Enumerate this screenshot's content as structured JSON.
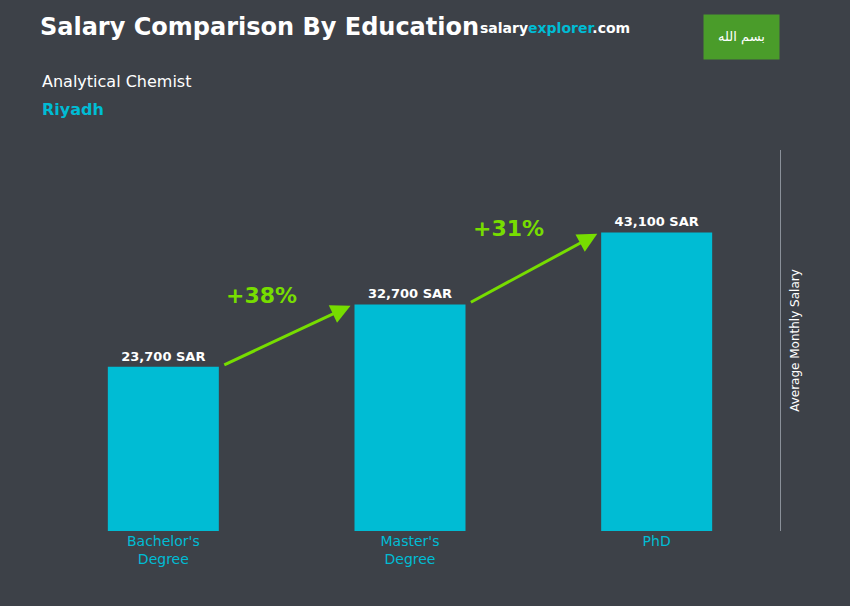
{
  "chart_data": {
    "type": "bar",
    "title": "Salary Comparison By Education",
    "subtitle": "Analytical Chemist",
    "location": "Riyadh",
    "source": [
      "salary",
      "explorer",
      ".com"
    ],
    "badge": "بسم الله",
    "ylabel": "Average Monthly Salary",
    "categories": [
      "Bachelor's\nDegree",
      "Master's\nDegree",
      "PhD"
    ],
    "values": [
      23700,
      32700,
      43100
    ],
    "value_labels": [
      "23,700 SAR",
      "32,700 SAR",
      "43,100 SAR"
    ],
    "data_labels": true,
    "color": "#00bcd4",
    "annotations": [
      {
        "text": "+38%",
        "color": "#77dd00"
      },
      {
        "text": "+31%",
        "color": "#77dd00"
      }
    ],
    "ylim": [
      0,
      55000
    ],
    "tick_labels": "x",
    "grid": false
  }
}
